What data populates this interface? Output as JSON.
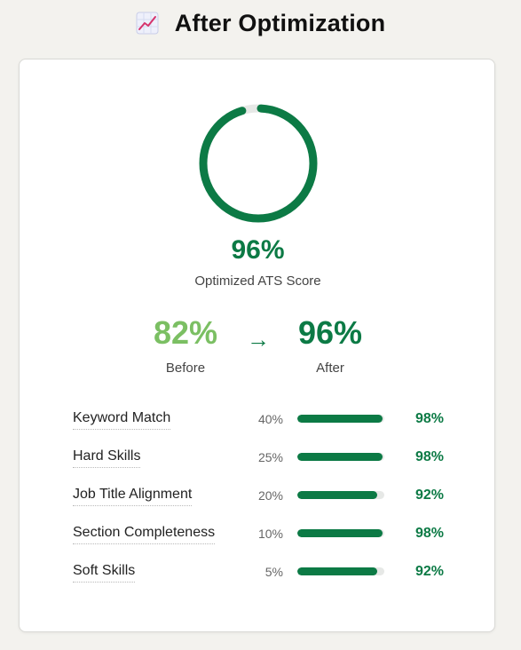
{
  "header": {
    "icon": "chart-increasing-icon",
    "title": "After Optimization"
  },
  "colors": {
    "accent": "#0c7a45",
    "before": "#7bbf63",
    "track": "#e6e8e6"
  },
  "score": {
    "progress": 0.96,
    "value": "96%",
    "label": "Optimized ATS Score"
  },
  "comparison": {
    "before_value": "82%",
    "before_label": "Before",
    "arrow": "→",
    "after_value": "96%",
    "after_label": "After"
  },
  "metrics": [
    {
      "name": "Keyword Match",
      "weight": "40%",
      "progress": 0.98,
      "value": "98%"
    },
    {
      "name": "Hard Skills",
      "weight": "25%",
      "progress": 0.98,
      "value": "98%"
    },
    {
      "name": "Job Title Alignment",
      "weight": "20%",
      "progress": 0.92,
      "value": "92%"
    },
    {
      "name": "Section Completeness",
      "weight": "10%",
      "progress": 0.98,
      "value": "98%"
    },
    {
      "name": "Soft Skills",
      "weight": "5%",
      "progress": 0.92,
      "value": "92%"
    }
  ]
}
